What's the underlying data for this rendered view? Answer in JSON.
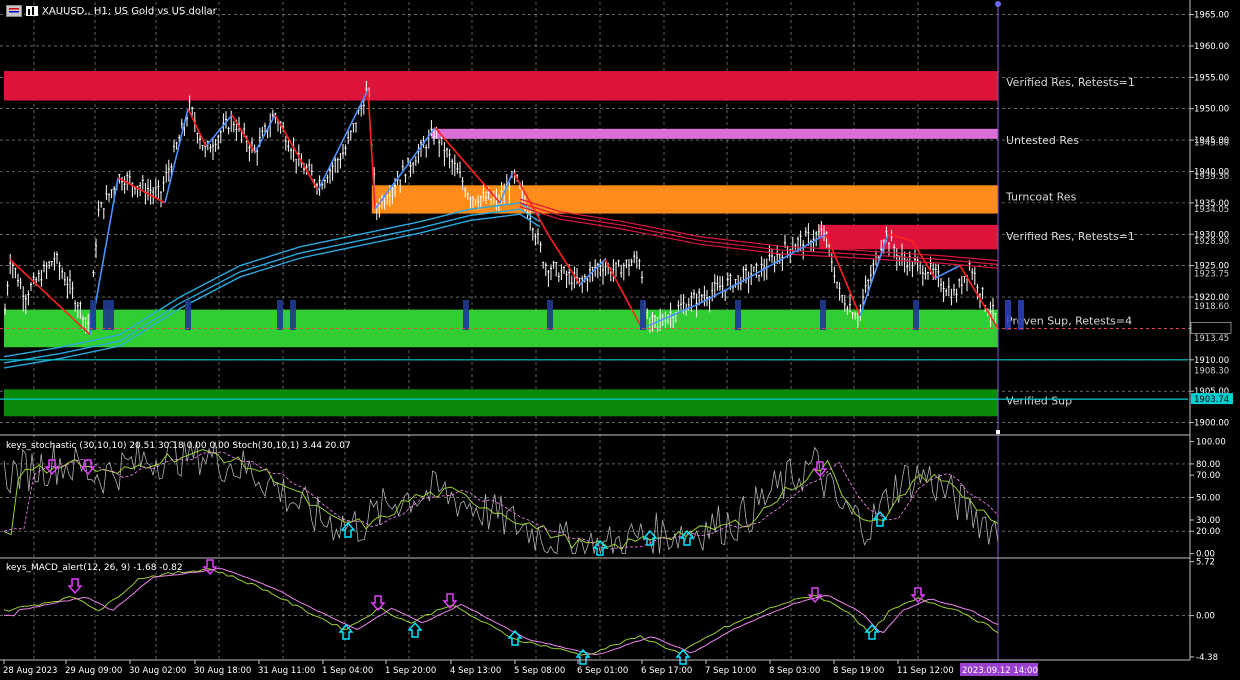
{
  "header": {
    "title": "XAUUSD., H1:  US Gold vs US dollar"
  },
  "zones": [
    {
      "label": "Verified Res, Retests=1",
      "y1": 1956.0,
      "y2": 1951.3,
      "x_start": 0.0,
      "color": "#dc143c"
    },
    {
      "label": "Untested Res",
      "y1": 1946.8,
      "y2": 1945.2,
      "x_start": 0.43,
      "color": "#da70d6"
    },
    {
      "label": "Turncoat Res",
      "y1": 1937.8,
      "y2": 1933.3,
      "x_start": 0.37,
      "color": "#ff8c1a"
    },
    {
      "label": "Verified Res, Retests=1",
      "y1": 1931.5,
      "y2": 1927.6,
      "x_start": 0.82,
      "color": "#dc143c"
    },
    {
      "label": "Proven Sup, Retests=4",
      "y1": 1918.0,
      "y2": 1912.0,
      "x_start": 0.0,
      "color": "#32cd32"
    },
    {
      "label": "Verified Sup",
      "y1": 1905.3,
      "y2": 1901.0,
      "x_start": 0.0,
      "color": "#0a8a0a"
    }
  ],
  "price_axis": {
    "ticks": [
      "1965.00",
      "1960.00",
      "1955.00",
      "1950.00",
      "1945.00",
      "1940.00",
      "1935.00",
      "1930.00",
      "1925.00",
      "1920.00",
      "1915.00",
      "1910.00",
      "1905.00",
      "1900.00"
    ],
    "minor_labels": [
      {
        "text": "1945.00",
        "value": 1944.6
      },
      {
        "text": "1939.30",
        "value": 1939.3
      },
      {
        "text": "1934.05",
        "value": 1934.05
      },
      {
        "text": "1928.90",
        "value": 1928.9
      },
      {
        "text": "1923.75",
        "value": 1923.75
      },
      {
        "text": "1918.60",
        "value": 1918.6
      },
      {
        "text": "1913.45",
        "value": 1913.45
      },
      {
        "text": "1908.30",
        "value": 1908.3
      }
    ],
    "current_price": "1903.74",
    "hlines": [
      1910.0,
      1903.74
    ]
  },
  "stochastic": {
    "title": "keys_stochastic (30,10,10) 20.51 30.18 0.00 0.00 Stoch(30,10,1) 3.44 20.07",
    "ticks": [
      "100.00",
      "80.00",
      "70.00",
      "50.00",
      "30.00",
      "20.00",
      "0.00"
    ]
  },
  "macd": {
    "title": "keys_MACD_alert(12, 26, 9) -1.68 -0.82",
    "ticks": [
      "5.72",
      "0.00",
      "-4.38"
    ]
  },
  "time_axis": {
    "labels": [
      "28 Aug 2023",
      "29 Aug 09:00",
      "30 Aug 02:00",
      "30 Aug 18:00",
      "31 Aug 11:00",
      "1 Sep 04:00",
      "1 Sep 20:00",
      "4 Sep 13:00",
      "5 Sep 08:00",
      "6 Sep 01:00",
      "6 Sep 17:00",
      "7 Sep 10:00",
      "8 Sep 03:00",
      "8 Sep 19:00",
      "11 Sep 12:00"
    ],
    "current_time": "2023.09.12 14:00"
  },
  "colors": {
    "background": "#000000",
    "grid": "#c0c0c0",
    "price": "#ffffff",
    "zigzag_down": "#ff2020",
    "zigzag_up": "#4a90ff",
    "ema_blue": "#29a8e0",
    "ema_red": "#dc143c",
    "hline": "#00ced1",
    "stoch_main": "#b0b0b0",
    "stoch_signal": "#9acd32",
    "macd_main": "#9acd32",
    "macd_signal": "#ee82ee",
    "arrow_down": "#e040fb",
    "arrow_up": "#00e5ff",
    "time_highlight": "#9a3fd0"
  }
}
